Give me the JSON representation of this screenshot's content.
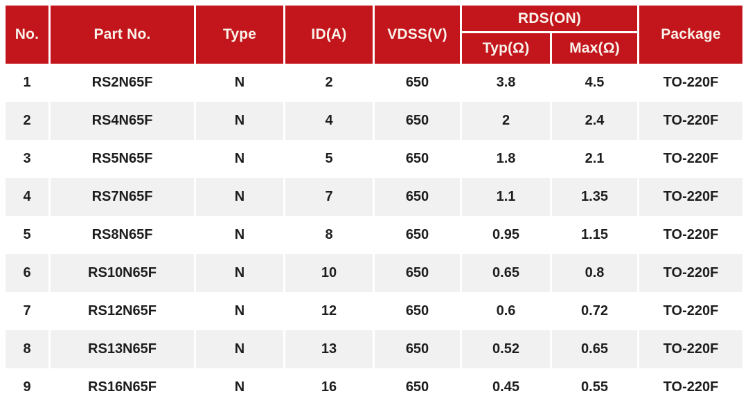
{
  "table": {
    "headers": {
      "no": "No.",
      "part_no": "Part No.",
      "type": "Type",
      "id_a": "ID(A)",
      "vdss": "VDSS(V)",
      "rds_on": "RDS(ON)",
      "typ": "Typ(Ω)",
      "max": "Max(Ω)",
      "package": "Package"
    },
    "rows": [
      [
        "1",
        "RS2N65F",
        "N",
        "2",
        "650",
        "3.8",
        "4.5",
        "TO-220F"
      ],
      [
        "2",
        "RS4N65F",
        "N",
        "4",
        "650",
        "2",
        "2.4",
        "TO-220F"
      ],
      [
        "3",
        "RS5N65F",
        "N",
        "5",
        "650",
        "1.8",
        "2.1",
        "TO-220F"
      ],
      [
        "4",
        "RS7N65F",
        "N",
        "7",
        "650",
        "1.1",
        "1.35",
        "TO-220F"
      ],
      [
        "5",
        "RS8N65F",
        "N",
        "8",
        "650",
        "0.95",
        "1.15",
        "TO-220F"
      ],
      [
        "6",
        "RS10N65F",
        "N",
        "10",
        "650",
        "0.65",
        "0.8",
        "TO-220F"
      ],
      [
        "7",
        "RS12N65F",
        "N",
        "12",
        "650",
        "0.6",
        "0.72",
        "TO-220F"
      ],
      [
        "8",
        "RS13N65F",
        "N",
        "13",
        "650",
        "0.52",
        "0.65",
        "TO-220F"
      ],
      [
        "9",
        "RS16N65F",
        "N",
        "16",
        "650",
        "0.45",
        "0.55",
        "TO-220F"
      ]
    ]
  },
  "colors": {
    "header_bg": "#c3161c",
    "header_text": "#f9f3ec",
    "row_alt_bg": "#f1f1f1",
    "body_text": "#1d1d1d",
    "divider": "#ffffff"
  }
}
